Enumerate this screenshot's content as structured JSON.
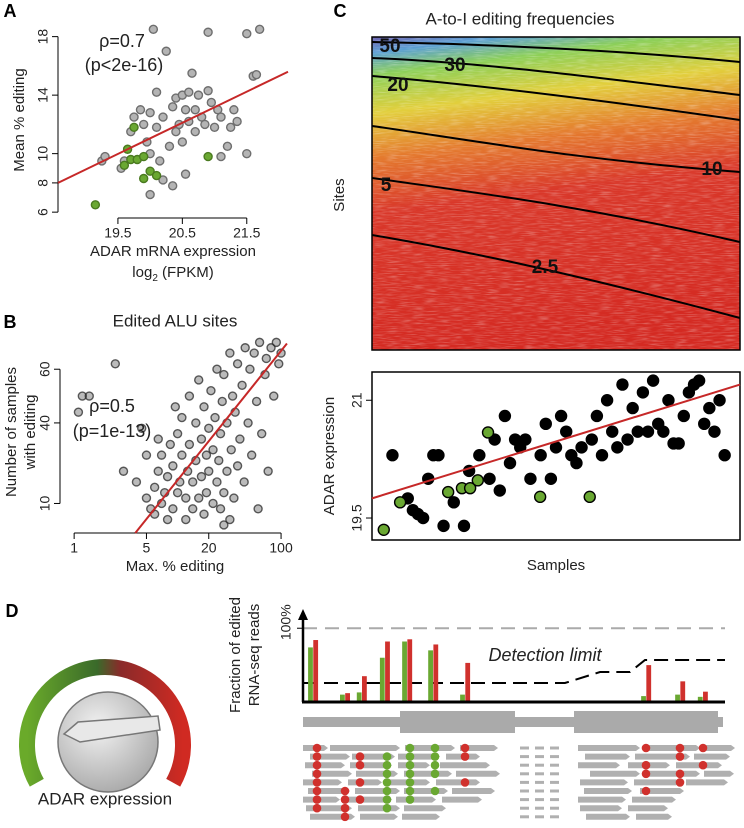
{
  "chart_data": [
    {
      "type": "scatter",
      "panel": "A",
      "xlabel": "ADAR mRNA expression",
      "xunit": {
        "text": "log",
        "sub": "2",
        "rest": " (FPKM)"
      },
      "ylabel": "Mean % editing",
      "annotations": [
        "ρ=0.7",
        "(p<2e-16)"
      ],
      "xlim": [
        18.57,
        22.14
      ],
      "xticks": [
        19.5,
        20.5,
        21.5
      ],
      "ylim": [
        5.6,
        19
      ],
      "yticks": [
        6,
        8,
        10,
        14,
        18
      ],
      "fit": {
        "x": [
          18.57,
          22.14
        ],
        "y": [
          8.0,
          15.6
        ],
        "color": "#c62828"
      },
      "series": [
        {
          "color": "#b4b4b4",
          "stroke": "#6e6e6e",
          "x": [
            19.25,
            19.3,
            19.55,
            19.6,
            19.7,
            19.75,
            19.85,
            19.9,
            19.95,
            20.0,
            20.0,
            20.1,
            20.15,
            20.2,
            20.25,
            20.3,
            20.35,
            20.4,
            20.4,
            20.45,
            20.5,
            20.5,
            20.55,
            20.6,
            20.6,
            20.65,
            20.7,
            20.7,
            20.75,
            20.8,
            20.85,
            20.9,
            20.95,
            21.0,
            21.05,
            21.1,
            21.2,
            21.25,
            21.3,
            21.35,
            21.5,
            21.6,
            21.65,
            21.7,
            20.35,
            20.2,
            20.05,
            20.9,
            20.1,
            21.1,
            21.5,
            20.55,
            20.0
          ],
          "values": [
            9.5,
            9.8,
            9.0,
            9.5,
            11.5,
            12.5,
            13,
            12,
            10.8,
            10,
            12.8,
            11.8,
            9.5,
            12.5,
            17,
            10.5,
            13.2,
            13.8,
            11.5,
            12,
            14,
            10.8,
            13,
            12.2,
            14.2,
            15.5,
            11.5,
            13,
            14,
            12.5,
            12,
            14.3,
            13.5,
            11.8,
            13,
            12.5,
            10.5,
            11.8,
            13,
            12.2,
            10,
            15.3,
            15.4,
            18.5,
            7.8,
            8.2,
            18.5,
            18.3,
            14.2,
            9.8,
            18.2,
            8.6,
            7.2
          ]
        },
        {
          "color": "#6aa832",
          "stroke": "#4a7a20",
          "x": [
            19.15,
            19.65,
            19.7,
            19.8,
            19.9,
            19.9,
            19.75,
            20.0,
            20.1,
            20.9,
            19.6
          ],
          "values": [
            6.5,
            10.3,
            9.6,
            9.6,
            9.8,
            8.3,
            11.8,
            8.8,
            8.5,
            9.8,
            9.2
          ]
        }
      ]
    },
    {
      "type": "scatter",
      "panel": "B",
      "title": "Edited ALU sites",
      "xlabel": "Max. % editing",
      "ylabel": [
        "Number of samples",
        "with editing"
      ],
      "annotations": [
        "ρ=0.5",
        "(p=1e-13)"
      ],
      "xlog": true,
      "xlim": [
        0.73,
        122
      ],
      "xticks": [
        1,
        5,
        20,
        100
      ],
      "ylim": [
        -1,
        72
      ],
      "yticks": [
        10,
        40,
        60
      ],
      "fit": {
        "x": [
          3.9,
          114
        ],
        "y": [
          -1,
          69.6
        ],
        "color": "#c62828"
      },
      "series": [
        {
          "color": "rgba(60,60,60,0.35)",
          "stroke": "rgba(40,40,40,0.75)",
          "x": [
            1.1,
            1.2,
            1.4,
            2.5,
            3,
            4,
            5,
            5.5,
            6,
            6,
            6.5,
            7,
            7,
            7.5,
            8,
            8,
            8.5,
            9,
            9,
            10,
            10,
            10.5,
            11,
            11,
            12,
            12,
            12.5,
            13,
            13,
            14,
            14,
            15,
            15,
            16,
            16,
            17,
            17,
            18,
            18,
            19,
            19,
            20,
            20,
            21,
            22,
            22,
            23,
            24,
            24,
            25,
            26,
            26,
            27,
            28,
            28,
            30,
            30,
            32,
            33,
            34,
            35,
            36,
            38,
            38,
            40,
            42,
            44,
            45,
            48,
            50,
            52,
            55,
            58,
            60,
            62,
            65,
            70,
            72,
            75,
            80,
            85,
            90,
            95,
            100,
            6.5,
            9.5,
            5,
            4.5,
            32,
            28
          ],
          "values": [
            44,
            50,
            50,
            62,
            22,
            18,
            12,
            8,
            6,
            16,
            22,
            10,
            28,
            14,
            4,
            20,
            32,
            8,
            24,
            14,
            36,
            18,
            28,
            42,
            4,
            12,
            22,
            32,
            50,
            8,
            18,
            26,
            40,
            12,
            56,
            20,
            34,
            6,
            46,
            14,
            28,
            22,
            38,
            52,
            10,
            30,
            42,
            18,
            60,
            26,
            8,
            36,
            48,
            14,
            58,
            22,
            40,
            66,
            30,
            50,
            12,
            44,
            24,
            62,
            34,
            54,
            18,
            68,
            40,
            60,
            28,
            66,
            48,
            8,
            70,
            36,
            58,
            64,
            22,
            68,
            50,
            70,
            62,
            66,
            34,
            46,
            28,
            38,
            4,
            2
          ]
        }
      ]
    },
    {
      "type": "heatmap",
      "panel": "C",
      "title": "A-to-I editing frequencies",
      "ylabel": "Sites",
      "contours": [
        50,
        30,
        20,
        10,
        5,
        2.5
      ]
    },
    {
      "type": "scatter",
      "ylabel": "ADAR expression",
      "xlabel": "Samples",
      "frame": true,
      "xlim": [
        0,
        72
      ],
      "ylim": [
        19.22,
        21.36
      ],
      "yticks": [
        19.5,
        21.0
      ],
      "fit": {
        "x": [
          0,
          72
        ],
        "y": [
          19.75,
          21.2
        ],
        "color": "#c62828"
      },
      "series": [
        {
          "color": "#000000",
          "stroke": "#000000",
          "x": [
            4,
            7,
            8,
            9,
            10,
            11,
            12,
            13,
            14,
            16,
            18,
            19,
            21,
            23,
            24,
            25,
            26,
            27,
            28,
            29,
            30,
            31,
            33,
            34,
            35,
            36,
            37,
            38,
            39,
            40,
            41,
            43,
            44,
            45,
            46,
            47,
            48,
            49,
            50,
            51,
            52,
            53,
            54,
            55,
            56,
            57,
            58,
            59,
            60,
            61,
            62,
            63,
            64,
            65,
            66,
            67,
            68,
            69
          ],
          "values": [
            20.3,
            19.75,
            19.6,
            19.55,
            19.5,
            20.0,
            20.3,
            20.3,
            19.4,
            19.7,
            19.4,
            20.1,
            20.3,
            20.0,
            20.5,
            19.85,
            20.8,
            20.2,
            20.5,
            20.4,
            20.5,
            20.0,
            20.3,
            20.7,
            20.0,
            20.4,
            20.8,
            20.6,
            20.3,
            20.2,
            20.4,
            20.5,
            20.8,
            20.3,
            21.0,
            20.6,
            20.4,
            21.2,
            20.5,
            20.9,
            20.6,
            21.1,
            20.6,
            21.25,
            20.7,
            20.6,
            21.0,
            20.45,
            20.45,
            20.8,
            21.1,
            21.2,
            21.25,
            20.7,
            20.9,
            20.6,
            21.0,
            20.3
          ]
        },
        {
          "color": "#6aa832",
          "stroke": "#000000",
          "x": [
            2.3,
            5.5,
            14.9,
            17.6,
            19.2,
            20.7,
            22.7,
            32.9,
            42.6
          ],
          "values": [
            19.35,
            19.7,
            19.83,
            19.88,
            19.88,
            19.98,
            20.59,
            19.77,
            19.77
          ]
        }
      ]
    },
    {
      "type": "bar",
      "panel": "D",
      "knob_label": "ADAR expression",
      "ylabel": [
        "Fraction of edited",
        "RNA-seq reads"
      ],
      "annotation": "Detection limit",
      "xlim": [
        0,
        100
      ],
      "ylim": [
        0,
        122
      ],
      "yticks": [
        {
          "value": 100,
          "label": "100%"
        }
      ],
      "x": [
        2.4,
        10,
        14,
        19.5,
        24.8,
        31,
        38.6,
        81.7,
        89.8,
        95.2
      ],
      "series": [
        {
          "color": "#6aa832",
          "values": [
            74,
            10,
            13,
            60,
            82,
            70,
            10,
            8,
            10,
            7
          ]
        },
        {
          "color": "#d0312d",
          "values": [
            84,
            12,
            35,
            82,
            85,
            78,
            53,
            50,
            28,
            14
          ]
        }
      ]
    }
  ]
}
